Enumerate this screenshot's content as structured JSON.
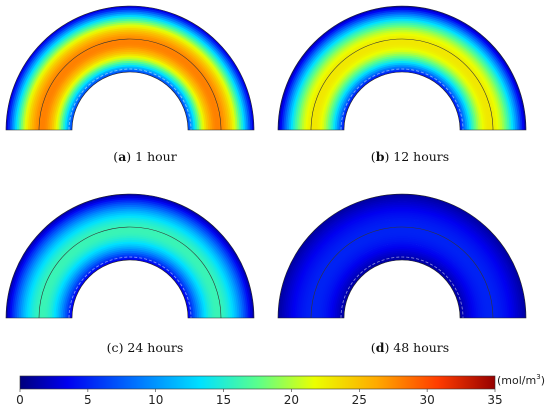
{
  "panels": [
    {
      "letter": "a",
      "title": "1 hour"
    },
    {
      "letter": "b",
      "title": "12 hours"
    },
    {
      "letter": "c",
      "title": "24 hours"
    },
    {
      "letter": "d",
      "title": "48 hours"
    }
  ],
  "colorbar": {
    "min": 0,
    "max": 35,
    "ticks": [
      0,
      5,
      10,
      15,
      20,
      25,
      30,
      35
    ],
    "unit": "(mol/m",
    "unit_sup": "3",
    "unit_close": ")"
  },
  "colormap": "rainbow",
  "fields": [
    {
      "outer_edge": 2,
      "mid": 28,
      "inner_edge": 6
    },
    {
      "outer_edge": 1,
      "mid": 23,
      "inner_edge": 4
    },
    {
      "outer_edge": 1,
      "mid": 16,
      "inner_edge": 3
    },
    {
      "outer_edge": 1,
      "mid": 5,
      "inner_edge": 1
    }
  ]
}
